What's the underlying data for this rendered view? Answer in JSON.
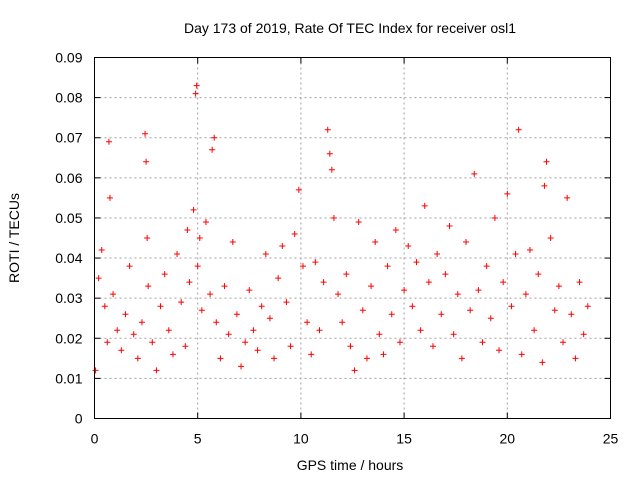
{
  "chart_data": {
    "type": "scatter",
    "title": "Day 173 of 2019, Rate Of TEC Index for receiver osl1",
    "xlabel": "GPS time / hours",
    "ylabel": "ROTI / TECUs",
    "xlim": [
      0,
      25
    ],
    "ylim": [
      0,
      0.09
    ],
    "xticks": [
      0,
      5,
      10,
      15,
      20,
      25
    ],
    "yticks": [
      0,
      0.01,
      0.02,
      0.03,
      0.04,
      0.05,
      0.06,
      0.07,
      0.08,
      0.09
    ],
    "grid": true,
    "marker": "plus",
    "color": "#ff0000",
    "series": [
      {
        "name": "osl1",
        "x": [
          0.05,
          0.2,
          0.35,
          0.5,
          0.62,
          0.7,
          0.75,
          0.9,
          1.1,
          1.3,
          1.5,
          1.7,
          1.9,
          2.1,
          2.3,
          2.45,
          2.5,
          2.55,
          2.6,
          2.8,
          3.0,
          3.2,
          3.4,
          3.6,
          3.8,
          4.0,
          4.2,
          4.4,
          4.5,
          4.6,
          4.8,
          4.9,
          4.95,
          5.0,
          5.1,
          5.2,
          5.4,
          5.6,
          5.7,
          5.8,
          5.9,
          6.1,
          6.3,
          6.5,
          6.7,
          6.9,
          7.1,
          7.3,
          7.5,
          7.7,
          7.9,
          8.1,
          8.3,
          8.5,
          8.7,
          8.9,
          9.1,
          9.3,
          9.5,
          9.7,
          9.9,
          10.1,
          10.3,
          10.5,
          10.7,
          10.9,
          11.1,
          11.3,
          11.4,
          11.5,
          11.6,
          11.8,
          12.0,
          12.2,
          12.4,
          12.6,
          12.8,
          13.0,
          13.2,
          13.4,
          13.6,
          13.8,
          14.0,
          14.2,
          14.4,
          14.6,
          14.8,
          15.0,
          15.2,
          15.4,
          15.6,
          15.8,
          16.0,
          16.2,
          16.4,
          16.6,
          16.8,
          17.0,
          17.2,
          17.4,
          17.6,
          17.8,
          18.0,
          18.2,
          18.4,
          18.6,
          18.8,
          19.0,
          19.2,
          19.4,
          19.6,
          19.8,
          20.0,
          20.2,
          20.4,
          20.55,
          20.7,
          20.9,
          21.1,
          21.3,
          21.5,
          21.7,
          21.8,
          21.9,
          22.1,
          22.3,
          22.5,
          22.7,
          22.9,
          23.1,
          23.3,
          23.5,
          23.7,
          23.9
        ],
        "y": [
          0.012,
          0.035,
          0.042,
          0.028,
          0.019,
          0.069,
          0.055,
          0.031,
          0.022,
          0.017,
          0.026,
          0.038,
          0.021,
          0.015,
          0.024,
          0.071,
          0.064,
          0.045,
          0.033,
          0.019,
          0.012,
          0.028,
          0.036,
          0.022,
          0.016,
          0.041,
          0.029,
          0.018,
          0.047,
          0.034,
          0.052,
          0.081,
          0.083,
          0.038,
          0.045,
          0.027,
          0.049,
          0.031,
          0.067,
          0.07,
          0.024,
          0.015,
          0.033,
          0.021,
          0.044,
          0.026,
          0.013,
          0.019,
          0.032,
          0.022,
          0.017,
          0.028,
          0.041,
          0.025,
          0.015,
          0.035,
          0.043,
          0.029,
          0.018,
          0.046,
          0.057,
          0.038,
          0.024,
          0.016,
          0.039,
          0.022,
          0.034,
          0.072,
          0.066,
          0.062,
          0.05,
          0.031,
          0.024,
          0.036,
          0.018,
          0.012,
          0.049,
          0.027,
          0.015,
          0.033,
          0.044,
          0.021,
          0.016,
          0.038,
          0.026,
          0.047,
          0.019,
          0.032,
          0.043,
          0.028,
          0.039,
          0.022,
          0.053,
          0.034,
          0.018,
          0.041,
          0.026,
          0.036,
          0.048,
          0.021,
          0.031,
          0.015,
          0.044,
          0.027,
          0.061,
          0.032,
          0.019,
          0.038,
          0.025,
          0.05,
          0.017,
          0.034,
          0.056,
          0.028,
          0.041,
          0.072,
          0.016,
          0.031,
          0.042,
          0.022,
          0.036,
          0.014,
          0.058,
          0.064,
          0.045,
          0.027,
          0.033,
          0.019,
          0.055,
          0.026,
          0.015,
          0.034,
          0.021,
          0.028
        ]
      }
    ]
  }
}
